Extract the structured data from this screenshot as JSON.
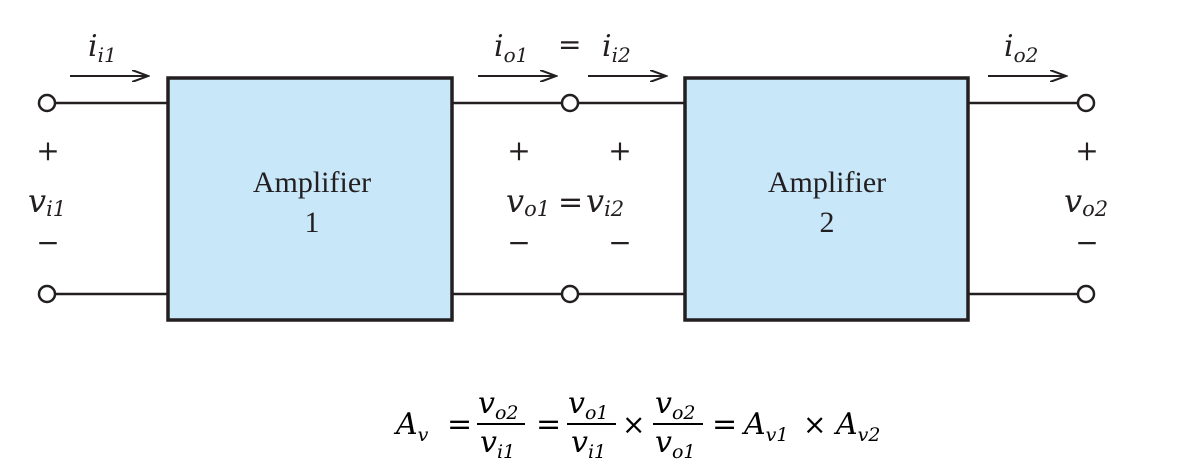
{
  "colors": {
    "amplifier_fill": "#c8e8fa",
    "line": "#231f20",
    "background": "#ffffff"
  },
  "currents": {
    "input": {
      "sym": "i",
      "sub": "i1"
    },
    "middle_left": {
      "sym": "i",
      "sub": "o1"
    },
    "middle_eq": "=",
    "middle_right": {
      "sym": "i",
      "sub": "i2"
    },
    "output": {
      "sym": "i",
      "sub": "o2"
    }
  },
  "amplifiers": [
    {
      "line1": "Amplifier",
      "line2": "1"
    },
    {
      "line1": "Amplifier",
      "line2": "2"
    }
  ],
  "voltages": {
    "input": {
      "sym": "v",
      "sub": "i1",
      "plus": "+",
      "minus": "−"
    },
    "middle_left": {
      "sym": "v",
      "sub": "o1",
      "plus": "+",
      "minus": "−"
    },
    "middle_eq": "=",
    "middle_right": {
      "sym": "v",
      "sub": "i2",
      "plus": "+",
      "minus": "−"
    },
    "output": {
      "sym": "v",
      "sub": "o2",
      "plus": "+",
      "minus": "−"
    }
  },
  "equation": {
    "lhs": {
      "sym": "A",
      "sub": "v"
    },
    "eq": "=",
    "frac1": {
      "num": "v",
      "num_sub": "o2",
      "den": "v",
      "den_sub": "i1"
    },
    "frac2": {
      "num": "v",
      "num_sub": "o1",
      "den": "v",
      "den_sub": "i1"
    },
    "times": "×",
    "frac3": {
      "num": "v",
      "num_sub": "o2",
      "den": "v",
      "den_sub": "o1"
    },
    "rhs1": {
      "sym": "A",
      "sub": "v1"
    },
    "rhs2": {
      "sym": "A",
      "sub": "v2"
    }
  }
}
